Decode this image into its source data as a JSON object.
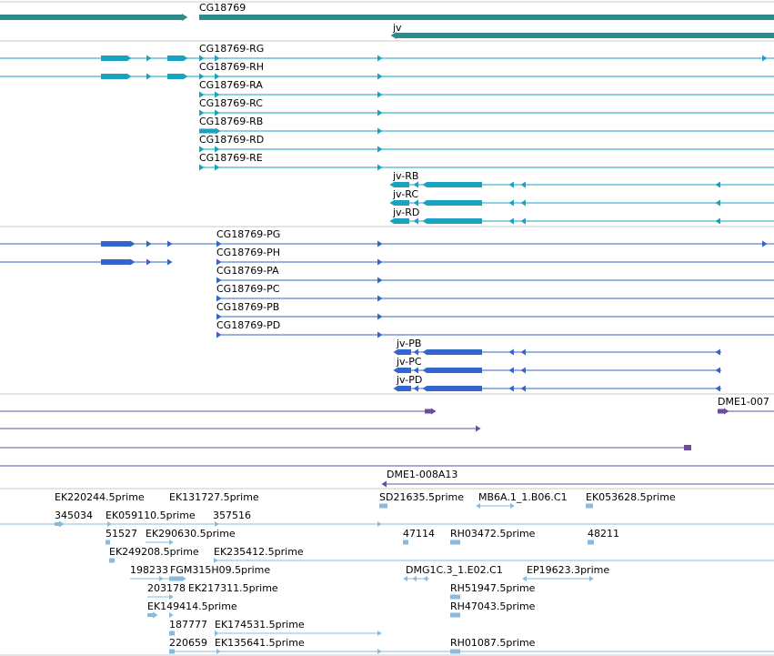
{
  "colors": {
    "gene": "#2e8b8b",
    "transcript_a": "#1aa3c0",
    "transcript_b": "#3366cc",
    "track3": "#6a4ca0",
    "est": "#88bbdd",
    "divider": "#c8c8c8"
  },
  "genes": [
    {
      "label": "CG18769"
    },
    {
      "label": "jv"
    }
  ],
  "transcripts_r": [
    {
      "label": "CG18769-RG"
    },
    {
      "label": "CG18769-RH"
    },
    {
      "label": "CG18769-RA"
    },
    {
      "label": "CG18769-RC"
    },
    {
      "label": "CG18769-RB"
    },
    {
      "label": "CG18769-RD"
    },
    {
      "label": "CG18769-RE"
    },
    {
      "label": "jv-RB"
    },
    {
      "label": "jv-RC"
    },
    {
      "label": "jv-RD"
    }
  ],
  "transcripts_p": [
    {
      "label": "CG18769-PG"
    },
    {
      "label": "CG18769-PH"
    },
    {
      "label": "CG18769-PA"
    },
    {
      "label": "CG18769-PC"
    },
    {
      "label": "CG18769-PB"
    },
    {
      "label": "CG18769-PD"
    },
    {
      "label": "jv-PB"
    },
    {
      "label": "jv-PC"
    },
    {
      "label": "jv-PD"
    }
  ],
  "track3": [
    {
      "label": "DME1-007"
    },
    {
      "label": "DME1-008A13"
    }
  ],
  "ests": [
    {
      "label": "EK220244.5prime"
    },
    {
      "label": "EK131727.5prime"
    },
    {
      "label": "SD21635.5prime"
    },
    {
      "label": "MB6A.1_1.B06.C1"
    },
    {
      "label": "EK053628.5prime"
    },
    {
      "label": "345034"
    },
    {
      "label": "EK059110.5prime"
    },
    {
      "label": "357516"
    },
    {
      "label": "51527"
    },
    {
      "label": "EK290630.5prime"
    },
    {
      "label": "47114"
    },
    {
      "label": "RH03472.5prime"
    },
    {
      "label": "48211"
    },
    {
      "label": "EK249208.5prime"
    },
    {
      "label": "EK235412.5prime"
    },
    {
      "label": "198233"
    },
    {
      "label": "FGM315H09.5prime"
    },
    {
      "label": "DMG1C.3_1.E02.C1"
    },
    {
      "label": "EP19623.3prime"
    },
    {
      "label": "203178"
    },
    {
      "label": "EK217311.5prime"
    },
    {
      "label": "RH51947.5prime"
    },
    {
      "label": "EK149414.5prime"
    },
    {
      "label": "RH47043.5prime"
    },
    {
      "label": "187777"
    },
    {
      "label": "EK174531.5prime"
    },
    {
      "label": "220659"
    },
    {
      "label": "EK135641.5prime"
    },
    {
      "label": "RH01087.5prime"
    }
  ]
}
